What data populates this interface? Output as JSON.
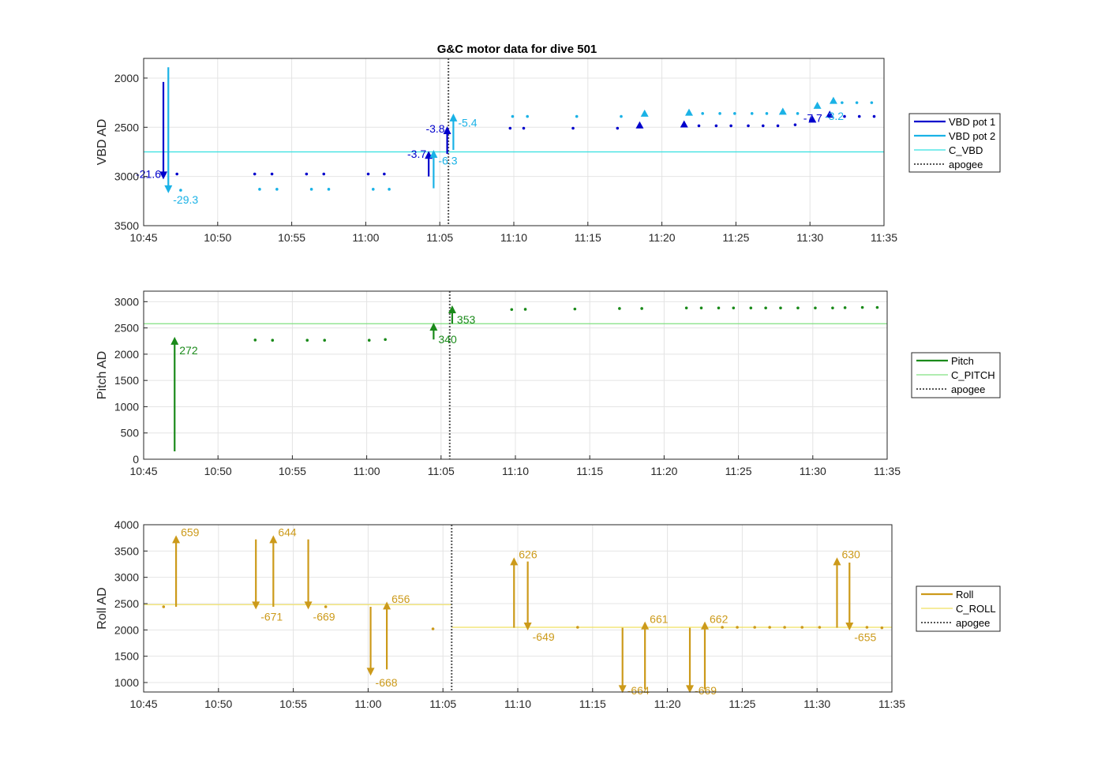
{
  "chart_data": {
    "title": "G&C motor data for dive 501",
    "x_ticks": [
      "10:45",
      "10:50",
      "10:55",
      "11:00",
      "11:05",
      "11:10",
      "11:15",
      "11:20",
      "11:25",
      "11:30",
      "11:35"
    ],
    "xlim": [
      "10:45",
      "11:35"
    ],
    "apogee": "11:05:35",
    "panels": [
      {
        "id": "vbd",
        "type": "scatter",
        "ylabel": "VBD AD",
        "ylim": [
          1800,
          3500
        ],
        "y_reversed": true,
        "y_ticks": [
          "2000",
          "2500",
          "3000",
          "3500"
        ],
        "y_tick_values": [
          2000,
          2500,
          3000,
          3500
        ],
        "grid": true,
        "legend": {
          "position": "right",
          "entries": [
            {
              "label": "VBD pot 1",
              "color": "#0000cc",
              "style": "solid-thick"
            },
            {
              "label": "VBD pot 2",
              "color": "#1ab2e6",
              "style": "solid-thick"
            },
            {
              "label": "C_VBD",
              "color": "#33e0e0",
              "style": "solid-thin"
            },
            {
              "label": "apogee",
              "color": "#555555",
              "style": "dotted"
            }
          ]
        },
        "hlines": [
          {
            "name": "C_VBD",
            "y": 2750,
            "color": "#33e0e0"
          }
        ],
        "arrows": [
          {
            "t": "10:46:20",
            "from": 2040,
            "to": 3030,
            "color": "#0000cc",
            "label": "-21.6",
            "label_side": "left",
            "label_y": 2975
          },
          {
            "t": "10:46:40",
            "from": 1890,
            "to": 3170,
            "color": "#1ab2e6",
            "label": "-29.3",
            "label_side": "right",
            "label_y": 3235
          },
          {
            "t": "11:04:15",
            "from": 3000,
            "to": 2740,
            "color": "#0000cc",
            "label": "-3.7",
            "label_side": "left",
            "label_y": 2770
          },
          {
            "t": "11:04:35",
            "from": 3120,
            "to": 2730,
            "color": "#1ab2e6",
            "label": "-6.3",
            "label_side": "right",
            "label_y": 2840
          },
          {
            "t": "11:05:30",
            "from": 2770,
            "to": 2490,
            "color": "#0000cc",
            "label": "-3.8",
            "label_side": "left",
            "label_y": 2515
          },
          {
            "t": "11:05:55",
            "from": 2730,
            "to": 2360,
            "color": "#1ab2e6",
            "label": "-5.4",
            "label_side": "right",
            "label_y": 2455
          }
        ],
        "triangles": [
          {
            "t": "11:18:30",
            "y": 2480,
            "color": "#0000cc"
          },
          {
            "t": "11:18:50",
            "y": 2360,
            "color": "#1ab2e6"
          },
          {
            "t": "11:21:30",
            "y": 2470,
            "color": "#0000cc"
          },
          {
            "t": "11:21:50",
            "y": 2350,
            "color": "#1ab2e6"
          },
          {
            "t": "11:28:10",
            "y": 2340,
            "color": "#1ab2e6"
          },
          {
            "t": "11:30:10",
            "y": 2420,
            "color": "#0000cc"
          },
          {
            "t": "11:30:30",
            "y": 2280,
            "color": "#1ab2e6"
          },
          {
            "t": "11:31:20",
            "y": 2370,
            "color": "#0000cc"
          },
          {
            "t": "11:31:35",
            "y": 2230,
            "color": "#1ab2e6"
          }
        ],
        "extra_labels": [
          {
            "t": "11:30:50",
            "y": 2405,
            "text": "-7.7",
            "color": "#0000cc",
            "anchor": "end"
          },
          {
            "t": "11:31:00",
            "y": 2385,
            "text": "-3.2",
            "color": "#1ab2e6",
            "anchor": "start"
          }
        ],
        "dots": [
          {
            "color": "#0000cc",
            "points": [
              [
                "10:46:25",
                2975
              ],
              [
                "10:47:15",
                2975
              ],
              [
                "10:52:30",
                2975
              ],
              [
                "10:53:40",
                2975
              ],
              [
                "10:56:00",
                2975
              ],
              [
                "10:57:10",
                2975
              ],
              [
                "11:00:10",
                2975
              ],
              [
                "11:01:15",
                2975
              ],
              [
                "11:09:45",
                2510
              ],
              [
                "11:10:40",
                2510
              ],
              [
                "11:14:00",
                2510
              ],
              [
                "11:17:00",
                2510
              ],
              [
                "11:22:30",
                2485
              ],
              [
                "11:23:40",
                2485
              ],
              [
                "11:24:40",
                2485
              ],
              [
                "11:25:50",
                2485
              ],
              [
                "11:26:50",
                2485
              ],
              [
                "11:27:50",
                2485
              ],
              [
                "11:29:00",
                2475
              ],
              [
                "11:32:20",
                2390
              ],
              [
                "11:33:20",
                2390
              ],
              [
                "11:34:20",
                2390
              ]
            ]
          },
          {
            "color": "#1ab2e6",
            "points": [
              [
                "10:47:30",
                3140
              ],
              [
                "10:52:50",
                3130
              ],
              [
                "10:54:00",
                3130
              ],
              [
                "10:56:20",
                3130
              ],
              [
                "10:57:30",
                3130
              ],
              [
                "11:00:30",
                3130
              ],
              [
                "11:01:35",
                3130
              ],
              [
                "11:09:55",
                2390
              ],
              [
                "11:10:55",
                2390
              ],
              [
                "11:14:15",
                2390
              ],
              [
                "11:17:15",
                2390
              ],
              [
                "11:22:45",
                2360
              ],
              [
                "11:23:55",
                2360
              ],
              [
                "11:24:55",
                2360
              ],
              [
                "11:26:05",
                2360
              ],
              [
                "11:27:05",
                2360
              ],
              [
                "11:29:10",
                2360
              ],
              [
                "11:32:10",
                2250
              ],
              [
                "11:33:10",
                2250
              ],
              [
                "11:34:10",
                2250
              ]
            ]
          }
        ]
      },
      {
        "id": "pitch",
        "type": "scatter",
        "ylabel": "Pitch AD",
        "ylim": [
          0,
          3200
        ],
        "y_reversed": false,
        "y_ticks": [
          "0",
          "500",
          "1000",
          "1500",
          "2000",
          "2500",
          "3000"
        ],
        "y_tick_values": [
          0,
          500,
          1000,
          1500,
          2000,
          2500,
          3000
        ],
        "grid": true,
        "legend": {
          "position": "right",
          "entries": [
            {
              "label": "Pitch",
              "color": "#1a8a1a",
              "style": "solid-thick"
            },
            {
              "label": "C_PITCH",
              "color": "#80e080",
              "style": "solid-thin"
            },
            {
              "label": "apogee",
              "color": "#555555",
              "style": "dotted"
            }
          ]
        },
        "hlines": [
          {
            "name": "C_PITCH",
            "y": 2580,
            "color": "#80e080"
          }
        ],
        "arrows": [
          {
            "t": "10:47:05",
            "from": 150,
            "to": 2330,
            "color": "#1a8a1a",
            "label": "272",
            "label_side": "right",
            "label_y": 2070
          },
          {
            "t": "11:04:30",
            "from": 2280,
            "to": 2600,
            "color": "#1a8a1a",
            "label": "340",
            "label_side": "right",
            "label_y": 2280
          },
          {
            "t": "11:05:45",
            "from": 2580,
            "to": 2930,
            "color": "#1a8a1a",
            "label": "353",
            "label_side": "right",
            "label_y": 2660
          }
        ],
        "triangles": [],
        "extra_labels": [],
        "dots": [
          {
            "color": "#1a8a1a",
            "points": [
              [
                "10:52:30",
                2270
              ],
              [
                "10:53:40",
                2265
              ],
              [
                "10:56:00",
                2265
              ],
              [
                "10:57:10",
                2265
              ],
              [
                "11:00:10",
                2265
              ],
              [
                "11:01:15",
                2280
              ],
              [
                "11:09:45",
                2850
              ],
              [
                "11:10:40",
                2855
              ],
              [
                "11:14:00",
                2860
              ],
              [
                "11:17:00",
                2870
              ],
              [
                "11:18:30",
                2870
              ],
              [
                "11:21:30",
                2880
              ],
              [
                "11:22:30",
                2880
              ],
              [
                "11:23:40",
                2880
              ],
              [
                "11:24:40",
                2880
              ],
              [
                "11:25:50",
                2880
              ],
              [
                "11:26:50",
                2880
              ],
              [
                "11:27:50",
                2880
              ],
              [
                "11:29:00",
                2880
              ],
              [
                "11:30:10",
                2880
              ],
              [
                "11:31:20",
                2880
              ],
              [
                "11:32:10",
                2885
              ],
              [
                "11:33:20",
                2890
              ],
              [
                "11:34:20",
                2890
              ]
            ]
          }
        ]
      },
      {
        "id": "roll",
        "type": "scatter",
        "ylabel": "Roll AD",
        "ylim": [
          820,
          4000
        ],
        "y_reversed": false,
        "y_ticks": [
          "1000",
          "1500",
          "2000",
          "2500",
          "3000",
          "3500",
          "4000"
        ],
        "y_tick_values": [
          1000,
          1500,
          2000,
          2500,
          3000,
          3500,
          4000
        ],
        "grid": true,
        "legend": {
          "position": "right",
          "entries": [
            {
              "label": "Roll",
              "color": "#cc9a1a",
              "style": "solid-thick"
            },
            {
              "label": "C_ROLL",
              "color": "#f0e060",
              "style": "solid-thin"
            },
            {
              "label": "apogee",
              "color": "#555555",
              "style": "dotted"
            }
          ]
        },
        "hlines": [
          {
            "name": "C_ROLL",
            "y": 2480,
            "color": "#f0e060",
            "from": "10:45",
            "to": "11:05:35"
          },
          {
            "name": "C_ROLL",
            "y": 2050,
            "color": "#f0e060",
            "from": "11:05:35",
            "to": "11:35"
          }
        ],
        "arrows": [
          {
            "t": "10:47:10",
            "from": 2440,
            "to": 3800,
            "color": "#cc9a1a",
            "label": "659",
            "label_side": "right",
            "label_y": 3860
          },
          {
            "t": "10:52:30",
            "from": 3720,
            "to": 2390,
            "color": "#cc9a1a",
            "label": "-671",
            "label_side": "right",
            "label_y": 2250
          },
          {
            "t": "10:53:40",
            "from": 2440,
            "to": 3800,
            "color": "#cc9a1a",
            "label": "644",
            "label_side": "right",
            "label_y": 3860
          },
          {
            "t": "10:56:00",
            "from": 3720,
            "to": 2390,
            "color": "#cc9a1a",
            "label": "-669",
            "label_side": "right",
            "label_y": 2250
          },
          {
            "t": "11:00:10",
            "from": 2440,
            "to": 1130,
            "color": "#cc9a1a",
            "label": "-668",
            "label_side": "right",
            "label_y": 1000
          },
          {
            "t": "11:01:15",
            "from": 1250,
            "to": 2540,
            "color": "#cc9a1a",
            "label": "656",
            "label_side": "right",
            "label_y": 2590
          },
          {
            "t": "11:09:45",
            "from": 2040,
            "to": 3380,
            "color": "#cc9a1a",
            "label": "626",
            "label_side": "right",
            "label_y": 3440
          },
          {
            "t": "11:10:40",
            "from": 3300,
            "to": 1990,
            "color": "#cc9a1a",
            "label": "-649",
            "label_side": "right",
            "label_y": 1870
          },
          {
            "t": "11:17:00",
            "from": 2040,
            "to": 800,
            "color": "#cc9a1a",
            "label": "-664",
            "label_side": "right",
            "label_y": 850
          },
          {
            "t": "11:18:30",
            "from": 870,
            "to": 2160,
            "color": "#cc9a1a",
            "label": "661",
            "label_side": "right",
            "label_y": 2210
          },
          {
            "t": "11:21:30",
            "from": 2040,
            "to": 800,
            "color": "#cc9a1a",
            "label": "-669",
            "label_side": "right",
            "label_y": 850
          },
          {
            "t": "11:22:30",
            "from": 870,
            "to": 2160,
            "color": "#cc9a1a",
            "label": "662",
            "label_side": "right",
            "label_y": 2210
          },
          {
            "t": "11:31:20",
            "from": 2040,
            "to": 3380,
            "color": "#cc9a1a",
            "label": "630",
            "label_side": "right",
            "label_y": 3440
          },
          {
            "t": "11:32:10",
            "from": 3280,
            "to": 1990,
            "color": "#cc9a1a",
            "label": "-655",
            "label_side": "right",
            "label_y": 1860
          }
        ],
        "triangles": [],
        "extra_labels": [],
        "dots": [
          {
            "color": "#cc9a1a",
            "points": [
              [
                "10:46:20",
                2440
              ],
              [
                "10:57:10",
                2440
              ],
              [
                "11:04:20",
                2020
              ],
              [
                "11:14:00",
                2050
              ],
              [
                "11:23:40",
                2050
              ],
              [
                "11:24:40",
                2050
              ],
              [
                "11:25:50",
                2050
              ],
              [
                "11:26:50",
                2050
              ],
              [
                "11:27:50",
                2050
              ],
              [
                "11:29:00",
                2050
              ],
              [
                "11:30:10",
                2050
              ],
              [
                "11:33:20",
                2050
              ],
              [
                "11:34:20",
                2040
              ]
            ]
          }
        ]
      }
    ]
  }
}
